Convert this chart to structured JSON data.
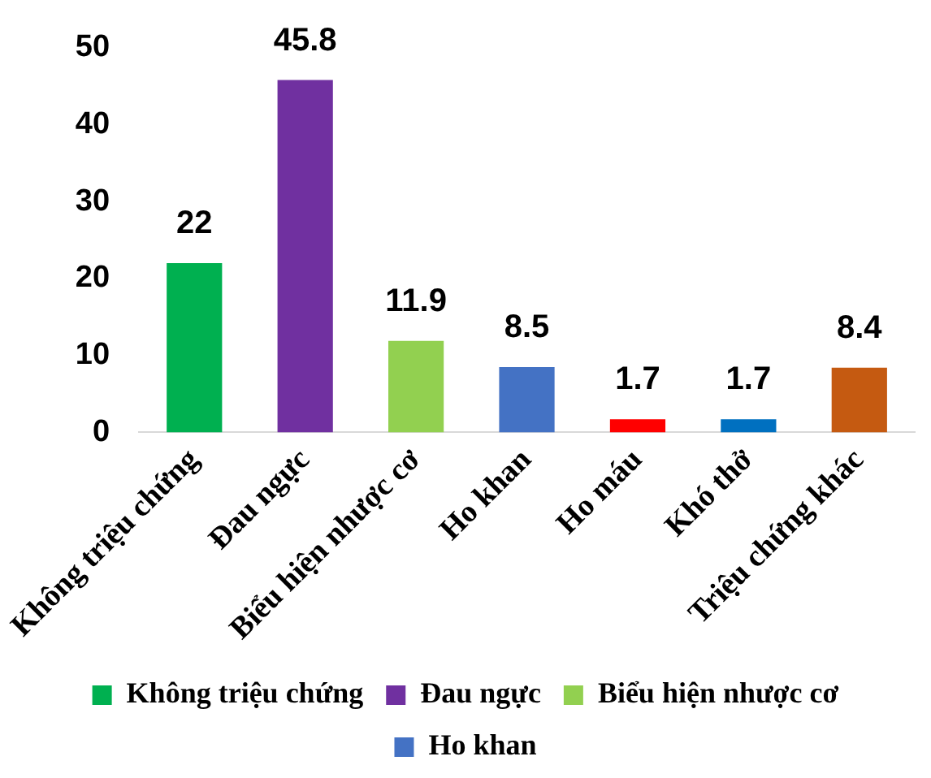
{
  "chart_data": {
    "type": "bar",
    "stacked": true,
    "categories": [
      "Không triệu chứng",
      "Đau ngực",
      "Biểu hiện nhược cơ",
      "Ho khan",
      "Ho máu",
      "Khó thở",
      "Triệu chứng khác"
    ],
    "series": [
      {
        "name": "Không triệu chứng",
        "color": "#00b050",
        "values": [
          22,
          null,
          null,
          null,
          null,
          null,
          null
        ]
      },
      {
        "name": "Đau ngực",
        "color": "#7030a0",
        "values": [
          null,
          45.8,
          null,
          null,
          null,
          null,
          null
        ]
      },
      {
        "name": "Biểu hiện nhược cơ",
        "color": "#92d050",
        "values": [
          null,
          null,
          11.9,
          null,
          null,
          null,
          null
        ]
      },
      {
        "name": "Ho khan",
        "color": "#4472c4",
        "values": [
          null,
          null,
          null,
          8.5,
          null,
          null,
          null
        ]
      },
      {
        "color": "#ff0000",
        "values": [
          null,
          null,
          null,
          null,
          1.7,
          null,
          null
        ]
      },
      {
        "color": "#0070c0",
        "values": [
          null,
          null,
          null,
          null,
          null,
          1.7,
          null
        ]
      },
      {
        "color": "#c55a11",
        "values": [
          null,
          null,
          null,
          null,
          null,
          null,
          8.4
        ]
      }
    ],
    "ylim": [
      0,
      50
    ],
    "yticks": [
      0,
      10,
      20,
      30,
      40,
      50
    ],
    "grid": false,
    "legend": "bottom",
    "data_labels": true
  }
}
